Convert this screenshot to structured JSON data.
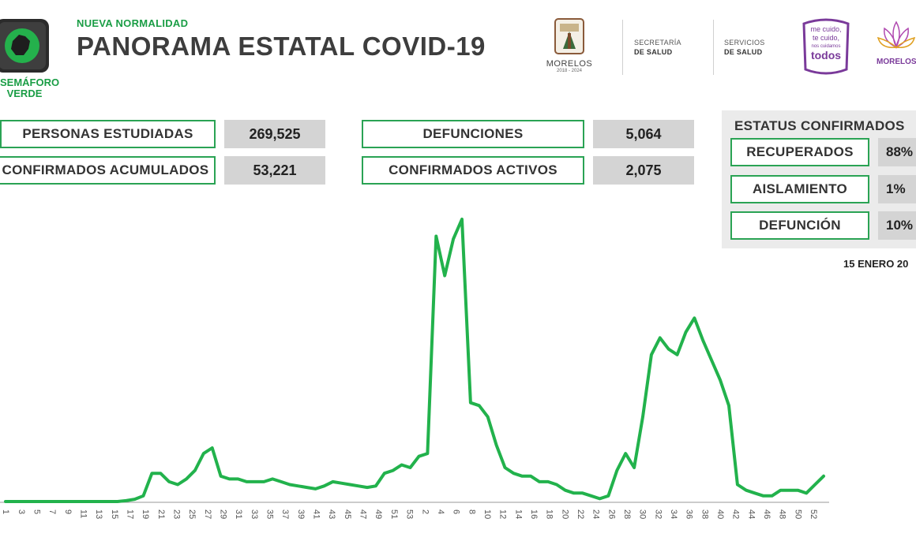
{
  "header": {
    "subtitle": "NUEVA NORMALIDAD",
    "title": "PANORAMA ESTATAL COVID-19",
    "semaforo_line1": "SEMÁFORO",
    "semaforo_line2": "VERDE"
  },
  "logos": {
    "morelos": "MORELOS",
    "morelos_years": "2018 - 2024",
    "secretaria_line1": "SECRETARÍA",
    "secretaria_line2": "DE SALUD",
    "servicios_line1": "SERVICIOS",
    "servicios_line2": "DE SALUD",
    "mecuido_line1": "me cuido,",
    "mecuido_line2": "te cuido,",
    "mecuido_line3": "nos cuidamos",
    "mecuido_line4": "todos",
    "morelos2": "MORELOS"
  },
  "stats": {
    "personas_label": "PERSONAS ESTUDIADAS",
    "personas_value": "269,525",
    "confirmados_label": "CONFIRMADOS ACUMULADOS",
    "confirmados_value": "53,221",
    "defunciones_label": "DEFUNCIONES",
    "defunciones_value": "5,064",
    "activos_label": "CONFIRMADOS ACTIVOS",
    "activos_value": "2,075"
  },
  "status": {
    "title": "ESTATUS CONFIRMADOS",
    "recuperados_label": "RECUPERADOS",
    "recuperados_value": "88%",
    "aislamiento_label": "AISLAMIENTO",
    "aislamiento_value": "1%",
    "defuncion_label": "DEFUNCIÓN",
    "defuncion_value": "10%"
  },
  "date": "15 ENERO 20",
  "colors": {
    "accent_green": "#1a9d45",
    "line_green": "#22b24c",
    "box_gray": "#d4d4d4"
  },
  "chart_data": {
    "type": "line",
    "title": "",
    "xlabel": "",
    "ylabel": "",
    "grid": false,
    "x_tick_labels": [
      "1",
      "3",
      "5",
      "7",
      "9",
      "11",
      "13",
      "15",
      "17",
      "19",
      "21",
      "23",
      "25",
      "27",
      "29",
      "31",
      "33",
      "35",
      "37",
      "39",
      "41",
      "43",
      "45",
      "47",
      "49",
      "51",
      "53",
      "2",
      "4",
      "6",
      "8",
      "10",
      "12",
      "14",
      "16",
      "18",
      "20",
      "22",
      "24",
      "26",
      "28",
      "30",
      "32",
      "34",
      "36",
      "38",
      "40",
      "42",
      "44",
      "46",
      "48",
      "50",
      "52"
    ],
    "ylim": [
      0,
      100
    ],
    "series": [
      {
        "values": [
          0,
          0,
          0,
          0,
          0,
          0,
          0,
          0,
          0,
          0,
          0,
          0,
          0,
          0,
          0.3,
          0.8,
          2,
          10,
          10,
          7,
          6,
          8,
          11,
          17,
          19,
          9,
          8,
          8,
          7,
          7,
          7,
          8,
          7,
          6,
          5.5,
          5,
          4.5,
          5.5,
          7,
          6.5,
          6,
          5.5,
          5,
          5.5,
          10,
          11,
          13,
          12,
          16,
          17,
          94,
          80,
          93,
          100,
          35,
          34,
          30,
          20,
          12,
          10,
          9,
          9,
          7,
          7,
          6,
          4,
          3,
          3,
          2,
          1,
          2,
          11,
          17,
          12,
          30,
          52,
          58,
          54,
          52,
          60,
          65,
          57,
          50,
          43,
          34,
          6,
          4,
          3,
          2,
          2,
          4,
          4,
          4,
          3,
          6,
          9
        ]
      }
    ]
  }
}
